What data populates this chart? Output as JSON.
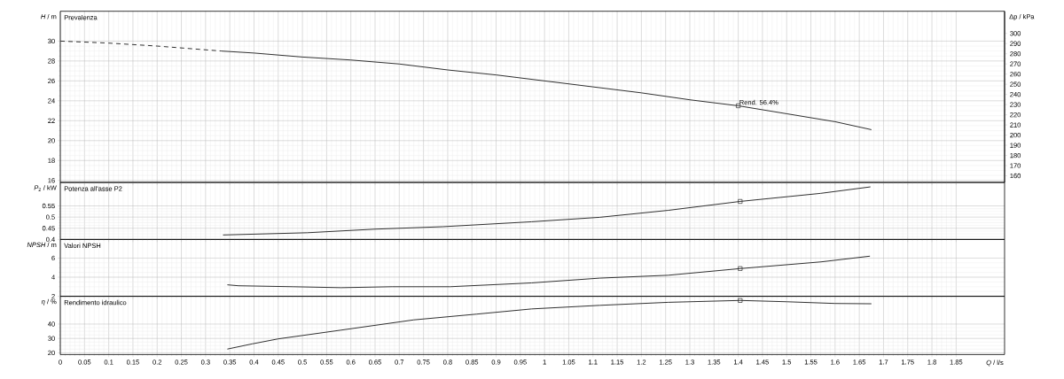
{
  "chart_data": [
    {
      "type": "line",
      "title": "Prevalenza",
      "ylabel": "*H* / m",
      "y2label": "Δp / kPa",
      "xlim": [
        0,
        1.95
      ],
      "xticks": [
        0,
        0.05,
        0.1,
        0.15,
        0.2,
        0.25,
        0.3,
        0.35,
        0.4,
        0.45,
        0.5,
        0.55,
        0.6,
        0.65,
        0.7,
        0.75,
        0.8,
        0.85,
        0.9,
        0.95,
        1,
        1.05,
        1.1,
        1.15,
        1.2,
        1.25,
        1.3,
        1.35,
        1.4,
        1.45,
        1.5,
        1.55,
        1.6,
        1.65,
        1.7,
        1.75,
        1.8,
        1.85
      ],
      "ylim": [
        15.8,
        33
      ],
      "yticks": [
        16,
        18,
        20,
        22,
        24,
        26,
        28,
        30
      ],
      "y2lim": [
        153.5,
        321.8
      ],
      "y2ticks": [
        160,
        170,
        180,
        190,
        200,
        210,
        220,
        230,
        240,
        250,
        260,
        270,
        280,
        290,
        300
      ],
      "grid": true,
      "tick_labels": "y",
      "annotations": [
        {
          "text": "Rend. 56.4%",
          "x": 1.4,
          "y": 23.5
        }
      ],
      "series": [
        {
          "color": "#303030",
          "line_style": "dashed",
          "x": [
            0,
            0.1,
            0.2,
            0.333
          ],
          "values": [
            30.0,
            29.8,
            29.5,
            29.0
          ]
        },
        {
          "color": "#303030",
          "line_style": "solid",
          "x": [
            0.333,
            0.4,
            0.5,
            0.6,
            0.7,
            0.8,
            0.9,
            1.0,
            1.1,
            1.2,
            1.3,
            1.4,
            1.5,
            1.6,
            1.675
          ],
          "values": [
            29.0,
            28.8,
            28.4,
            28.1,
            27.7,
            27.1,
            26.6,
            26.0,
            25.4,
            24.8,
            24.1,
            23.5,
            22.7,
            21.9,
            21.1
          ]
        },
        {
          "type": "scatter",
          "marker": "square",
          "color": "#303030",
          "x": [
            1.4
          ],
          "values": [
            23.5
          ]
        }
      ]
    },
    {
      "type": "line",
      "title": "Potenza all'asse P2",
      "ylabel": "*P*$_{2}$ / kW",
      "xlim": [
        0,
        1.95
      ],
      "xticks": [
        0,
        0.05,
        0.1,
        0.15,
        0.2,
        0.25,
        0.3,
        0.35,
        0.4,
        0.45,
        0.5,
        0.55,
        0.6,
        0.65,
        0.7,
        0.75,
        0.8,
        0.85,
        0.9,
        0.95,
        1,
        1.05,
        1.1,
        1.15,
        1.2,
        1.25,
        1.3,
        1.35,
        1.4,
        1.45,
        1.5,
        1.55,
        1.6,
        1.65,
        1.7,
        1.75,
        1.8,
        1.85
      ],
      "ylim": [
        0.4,
        0.655
      ],
      "yticks": [
        0.4,
        0.45,
        0.5,
        0.55
      ],
      "grid": true,
      "tick_labels": "y",
      "series": [
        {
          "color": "#303030",
          "line_style": "solid",
          "x": [
            0.336,
            0.51,
            0.65,
            0.79,
            0.973,
            1.114,
            1.255,
            1.404,
            1.57,
            1.673
          ],
          "values": [
            0.42,
            0.43,
            0.446,
            0.457,
            0.479,
            0.499,
            0.53,
            0.57,
            0.606,
            0.635
          ]
        },
        {
          "type": "scatter",
          "marker": "square",
          "color": "#303030",
          "x": [
            1.404
          ],
          "values": [
            0.57
          ]
        }
      ]
    },
    {
      "type": "line",
      "title": "Valori NPSH",
      "ylabel": "*NPSH* / m",
      "xlim": [
        0,
        1.95
      ],
      "xticks": [
        0,
        0.05,
        0.1,
        0.15,
        0.2,
        0.25,
        0.3,
        0.35,
        0.4,
        0.45,
        0.5,
        0.55,
        0.6,
        0.65,
        0.7,
        0.75,
        0.8,
        0.85,
        0.9,
        0.95,
        1,
        1.05,
        1.1,
        1.15,
        1.2,
        1.25,
        1.3,
        1.35,
        1.4,
        1.45,
        1.5,
        1.55,
        1.6,
        1.65,
        1.7,
        1.75,
        1.8,
        1.85
      ],
      "ylim": [
        2,
        7.95
      ],
      "yticks": [
        2,
        4,
        6
      ],
      "grid": true,
      "tick_labels": "y",
      "series": [
        {
          "color": "#303030",
          "line_style": "solid",
          "x": [
            0.345,
            0.368,
            0.48,
            0.58,
            0.685,
            0.805,
            0.973,
            1.114,
            1.255,
            1.404,
            1.571,
            1.672
          ],
          "values": [
            3.2,
            3.1,
            3.0,
            2.9,
            3.0,
            3.0,
            3.4,
            3.9,
            4.2,
            4.9,
            5.6,
            6.2
          ]
        },
        {
          "type": "scatter",
          "marker": "square",
          "color": "#303030",
          "x": [
            1.404
          ],
          "values": [
            4.9
          ]
        }
      ]
    },
    {
      "type": "line",
      "title": "Rendimento idraulico",
      "ylabel": "*η* / %",
      "xlabel": "*Q* / l/s",
      "xlim": [
        0,
        1.95
      ],
      "xticks": [
        0,
        0.05,
        0.1,
        0.15,
        0.2,
        0.25,
        0.3,
        0.35,
        0.4,
        0.45,
        0.5,
        0.55,
        0.6,
        0.65,
        0.7,
        0.75,
        0.8,
        0.85,
        0.9,
        0.95,
        1,
        1.05,
        1.1,
        1.15,
        1.2,
        1.25,
        1.3,
        1.35,
        1.4,
        1.45,
        1.5,
        1.55,
        1.6,
        1.65,
        1.7,
        1.75,
        1.8,
        1.85
      ],
      "ylim": [
        18.8,
        59.3
      ],
      "yticks": [
        20,
        30,
        40
      ],
      "grid": true,
      "series": [
        {
          "color": "#303030",
          "line_style": "solid",
          "x": [
            0.345,
            0.396,
            0.45,
            0.58,
            0.73,
            0.86,
            0.973,
            1.114,
            1.255,
            1.404,
            1.5,
            1.6,
            1.675
          ],
          "values": [
            22.6,
            26.2,
            29.7,
            35.8,
            42.9,
            46.9,
            50.5,
            53.0,
            55.1,
            56.4,
            55.5,
            54.3,
            54.1
          ]
        },
        {
          "type": "scatter",
          "marker": "square",
          "color": "#303030",
          "x": [
            1.404
          ],
          "values": [
            56.4
          ]
        }
      ]
    }
  ]
}
